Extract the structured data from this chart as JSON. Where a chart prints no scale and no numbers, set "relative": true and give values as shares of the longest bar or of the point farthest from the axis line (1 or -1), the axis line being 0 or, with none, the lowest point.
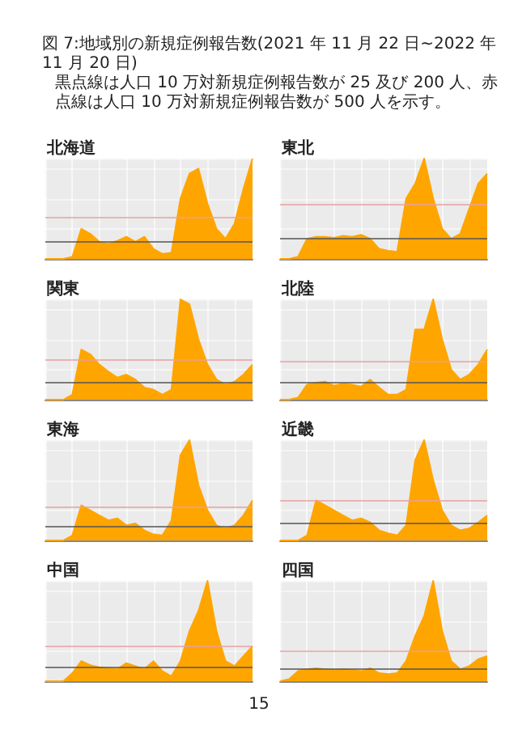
{
  "chart_data": [
    {
      "type": "area",
      "annotations": [
        "図 7:地域別の新規症例報告数(2021 年 11 月 22 日~2022 年 11 月 20 日)",
        "黒点線は人口 10 万対新規症例報告数が 25 及び 200 人、赤点線は人口 10 万対新規症例報告数が 500 人を示す。"
      ],
      "title": "北海道",
      "relative": true,
      "grid": true,
      "color": "#ffa500",
      "categories": [
        null,
        null,
        null,
        null,
        null,
        null,
        null,
        null,
        null,
        null,
        null,
        null,
        null,
        null,
        null,
        null,
        null,
        null,
        null,
        null,
        null,
        null,
        null,
        null
      ],
      "values": [
        0,
        0,
        0,
        0.02,
        0.3,
        0.25,
        0.17,
        0.15,
        0.18,
        0.22,
        0.17,
        0.22,
        0.1,
        0.05,
        0.06,
        0.6,
        0.85,
        0.9,
        0.55,
        0.3,
        0.2,
        0.35,
        0.7,
        1.0
      ],
      "ref_lines": [
        {
          "axis": "y",
          "value": 0.17,
          "color": "#555555"
        },
        {
          "axis": "y",
          "value": 0.42,
          "color": "#e8a0a0"
        }
      ]
    },
    {
      "type": "area",
      "title": "東北",
      "relative": true,
      "grid": true,
      "color": "#ffa500",
      "categories": [
        null,
        null,
        null,
        null,
        null,
        null,
        null,
        null,
        null,
        null,
        null,
        null,
        null,
        null,
        null,
        null,
        null,
        null,
        null,
        null,
        null,
        null,
        null,
        null
      ],
      "values": [
        0,
        0,
        0.02,
        0.2,
        0.22,
        0.22,
        0.21,
        0.23,
        0.22,
        0.24,
        0.2,
        0.1,
        0.08,
        0.07,
        0.6,
        0.75,
        1.0,
        0.6,
        0.3,
        0.2,
        0.25,
        0.5,
        0.75,
        0.85
      ],
      "ref_lines": [
        {
          "axis": "y",
          "value": 0.21,
          "color": "#555555"
        },
        {
          "axis": "y",
          "value": 0.55,
          "color": "#e8a0a0"
        }
      ]
    },
    {
      "type": "area",
      "title": "関東",
      "relative": true,
      "grid": true,
      "color": "#ffa500",
      "categories": [
        null,
        null,
        null,
        null,
        null,
        null,
        null,
        null,
        null,
        null,
        null,
        null,
        null,
        null,
        null,
        null,
        null,
        null,
        null,
        null,
        null,
        null,
        null,
        null
      ],
      "values": [
        0,
        0,
        0,
        0.05,
        0.5,
        0.45,
        0.35,
        0.28,
        0.22,
        0.25,
        0.2,
        0.12,
        0.1,
        0.05,
        0.1,
        1.0,
        0.95,
        0.6,
        0.35,
        0.2,
        0.15,
        0.18,
        0.25,
        0.35
      ],
      "ref_lines": [
        {
          "axis": "y",
          "value": 0.18,
          "color": "#555555"
        },
        {
          "axis": "y",
          "value": 0.4,
          "color": "#e8a0a0"
        }
      ]
    },
    {
      "type": "area",
      "title": "北陸",
      "relative": true,
      "grid": true,
      "color": "#ffa500",
      "categories": [
        null,
        null,
        null,
        null,
        null,
        null,
        null,
        null,
        null,
        null,
        null,
        null,
        null,
        null,
        null,
        null,
        null,
        null,
        null,
        null,
        null,
        null,
        null,
        null
      ],
      "values": [
        0,
        0,
        0.02,
        0.15,
        0.17,
        0.18,
        0.14,
        0.16,
        0.15,
        0.13,
        0.2,
        0.12,
        0.05,
        0.05,
        0.1,
        0.7,
        0.7,
        1.0,
        0.6,
        0.3,
        0.2,
        0.25,
        0.35,
        0.5
      ],
      "ref_lines": [
        {
          "axis": "y",
          "value": 0.17,
          "color": "#555555"
        },
        {
          "axis": "y",
          "value": 0.39,
          "color": "#e8a0a0"
        }
      ]
    },
    {
      "type": "area",
      "title": "東海",
      "relative": true,
      "grid": true,
      "color": "#ffa500",
      "categories": [
        null,
        null,
        null,
        null,
        null,
        null,
        null,
        null,
        null,
        null,
        null,
        null,
        null,
        null,
        null,
        null,
        null,
        null,
        null,
        null,
        null,
        null,
        null,
        null
      ],
      "values": [
        0,
        0,
        0,
        0.05,
        0.35,
        0.3,
        0.25,
        0.2,
        0.22,
        0.15,
        0.17,
        0.1,
        0.06,
        0.05,
        0.2,
        0.85,
        1.0,
        0.55,
        0.3,
        0.15,
        0.12,
        0.15,
        0.25,
        0.4
      ],
      "ref_lines": [
        {
          "axis": "y",
          "value": 0.14,
          "color": "#555555"
        },
        {
          "axis": "y",
          "value": 0.33,
          "color": "#e8a0a0"
        }
      ]
    },
    {
      "type": "area",
      "title": "近畿",
      "relative": true,
      "grid": true,
      "color": "#ffa500",
      "categories": [
        null,
        null,
        null,
        null,
        null,
        null,
        null,
        null,
        null,
        null,
        null,
        null,
        null,
        null,
        null,
        null,
        null,
        null,
        null,
        null,
        null,
        null,
        null,
        null
      ],
      "values": [
        0,
        0,
        0,
        0.05,
        0.4,
        0.35,
        0.3,
        0.25,
        0.2,
        0.22,
        0.18,
        0.1,
        0.07,
        0.05,
        0.15,
        0.8,
        1.0,
        0.6,
        0.3,
        0.15,
        0.1,
        0.12,
        0.18,
        0.25
      ],
      "ref_lines": [
        {
          "axis": "y",
          "value": 0.17,
          "color": "#555555"
        },
        {
          "axis": "y",
          "value": 0.4,
          "color": "#e8a0a0"
        }
      ]
    },
    {
      "type": "area",
      "title": "中国",
      "relative": true,
      "grid": true,
      "color": "#ffa500",
      "categories": [
        null,
        null,
        null,
        null,
        null,
        null,
        null,
        null,
        null,
        null,
        null,
        null,
        null,
        null,
        null,
        null,
        null,
        null,
        null,
        null,
        null,
        null,
        null,
        null
      ],
      "values": [
        0,
        0,
        0,
        0.08,
        0.2,
        0.16,
        0.14,
        0.13,
        0.12,
        0.18,
        0.15,
        0.12,
        0.2,
        0.1,
        0.05,
        0.2,
        0.5,
        0.7,
        1.0,
        0.5,
        0.2,
        0.15,
        0.25,
        0.35
      ],
      "ref_lines": [
        {
          "axis": "y",
          "value": 0.14,
          "color": "#555555"
        },
        {
          "axis": "y",
          "value": 0.35,
          "color": "#e8a0a0"
        }
      ]
    },
    {
      "type": "area",
      "title": "四国",
      "relative": true,
      "grid": true,
      "color": "#ffa500",
      "categories": [
        null,
        null,
        null,
        null,
        null,
        null,
        null,
        null,
        null,
        null,
        null,
        null,
        null,
        null,
        null,
        null,
        null,
        null,
        null,
        null,
        null,
        null,
        null,
        null
      ],
      "values": [
        0,
        0.02,
        0.1,
        0.12,
        0.13,
        0.12,
        0.11,
        0.12,
        0.11,
        0.1,
        0.13,
        0.08,
        0.07,
        0.08,
        0.2,
        0.45,
        0.65,
        1.0,
        0.5,
        0.2,
        0.12,
        0.15,
        0.22,
        0.25
      ],
      "ref_lines": [
        {
          "axis": "y",
          "value": 0.13,
          "color": "#555555"
        },
        {
          "axis": "y",
          "value": 0.31,
          "color": "#e8a0a0"
        }
      ],
      "annotations": [
        "15"
      ]
    }
  ]
}
